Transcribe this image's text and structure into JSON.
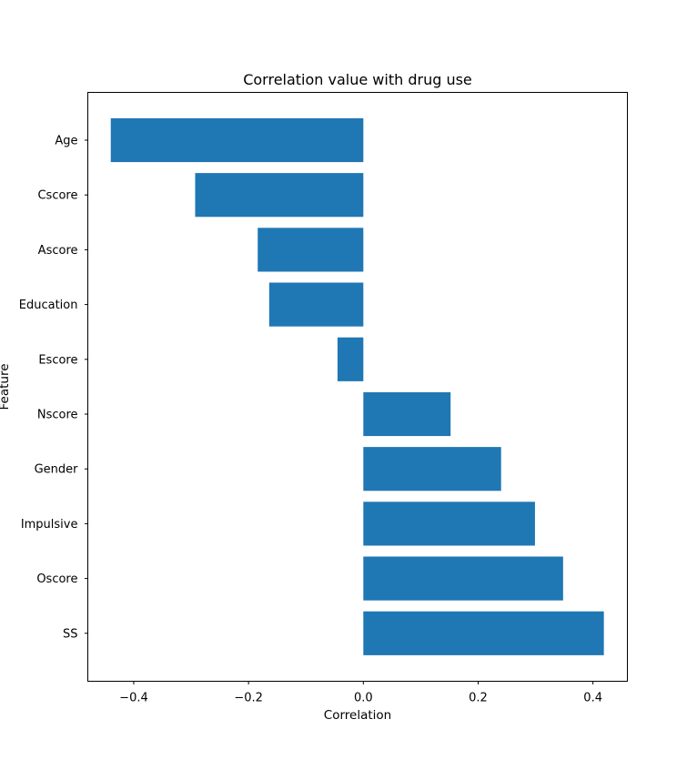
{
  "chart_data": {
    "type": "bar",
    "orientation": "horizontal",
    "title": "Correlation value with drug use",
    "xlabel": "Correlation",
    "ylabel": "Feature",
    "categories": [
      "Age",
      "Cscore",
      "Ascore",
      "Education",
      "Escore",
      "Nscore",
      "Gender",
      "Impulsive",
      "Oscore",
      "SS"
    ],
    "values": [
      -0.44,
      -0.293,
      -0.184,
      -0.164,
      -0.045,
      0.152,
      0.24,
      0.299,
      0.348,
      0.419
    ],
    "xlim": [
      -0.48,
      0.46
    ],
    "xticks": [
      -0.4,
      -0.2,
      0.0,
      0.2,
      0.4
    ],
    "xtick_labels": [
      "−0.4",
      "−0.2",
      "0.0",
      "0.2",
      "0.4"
    ],
    "bar_color": "#1f77b4",
    "grid": false,
    "legend": null
  }
}
